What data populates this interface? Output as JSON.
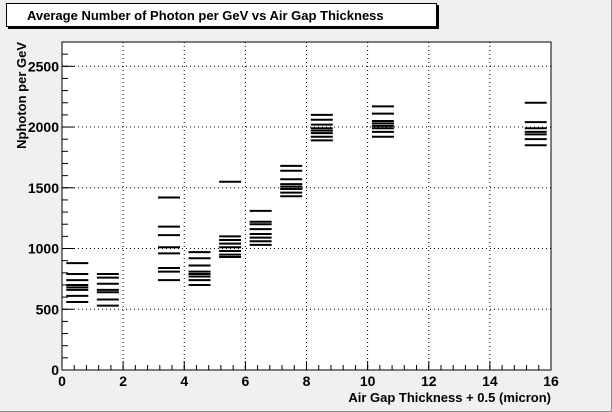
{
  "chart_data": {
    "type": "scatter",
    "marker": "horizontal-dash",
    "title": "Average Number of Photon per GeV vs Air Gap Thickness",
    "xlabel": "Air Gap Thickness + 0.5 (micron)",
    "ylabel": "Nphoton per GeV",
    "xlim": [
      0,
      16
    ],
    "ylim": [
      0,
      2700
    ],
    "x_ticks": [
      0,
      2,
      4,
      6,
      8,
      10,
      12,
      14,
      16
    ],
    "y_ticks": [
      0,
      500,
      1000,
      1500,
      2000,
      2500
    ],
    "grid": true,
    "legend": "none",
    "colors": {
      "frame": "#000000",
      "plot_bg": "#ffffff",
      "canvas_bg": "#f0f0f0"
    },
    "series": [
      {
        "points": [
          {
            "x": 0.5,
            "y": 880
          },
          {
            "x": 0.5,
            "y": 790
          },
          {
            "x": 0.5,
            "y": 740
          },
          {
            "x": 0.5,
            "y": 700
          },
          {
            "x": 0.5,
            "y": 680
          },
          {
            "x": 0.5,
            "y": 660
          },
          {
            "x": 0.5,
            "y": 610
          },
          {
            "x": 0.5,
            "y": 560
          },
          {
            "x": 1.5,
            "y": 790
          },
          {
            "x": 1.5,
            "y": 760
          },
          {
            "x": 1.5,
            "y": 710
          },
          {
            "x": 1.5,
            "y": 660
          },
          {
            "x": 1.5,
            "y": 640
          },
          {
            "x": 1.5,
            "y": 580
          },
          {
            "x": 1.5,
            "y": 530
          },
          {
            "x": 3.5,
            "y": 1420
          },
          {
            "x": 3.5,
            "y": 1180
          },
          {
            "x": 3.5,
            "y": 1110
          },
          {
            "x": 3.5,
            "y": 1010
          },
          {
            "x": 3.5,
            "y": 960
          },
          {
            "x": 3.5,
            "y": 840
          },
          {
            "x": 3.5,
            "y": 810
          },
          {
            "x": 3.5,
            "y": 740
          },
          {
            "x": 4.5,
            "y": 970
          },
          {
            "x": 4.5,
            "y": 920
          },
          {
            "x": 4.5,
            "y": 860
          },
          {
            "x": 4.5,
            "y": 810
          },
          {
            "x": 4.5,
            "y": 790
          },
          {
            "x": 4.5,
            "y": 770
          },
          {
            "x": 4.5,
            "y": 740
          },
          {
            "x": 4.5,
            "y": 700
          },
          {
            "x": 5.5,
            "y": 1550
          },
          {
            "x": 5.5,
            "y": 1100
          },
          {
            "x": 5.5,
            "y": 1070
          },
          {
            "x": 5.5,
            "y": 1040
          },
          {
            "x": 5.5,
            "y": 1010
          },
          {
            "x": 5.5,
            "y": 980
          },
          {
            "x": 5.5,
            "y": 950
          },
          {
            "x": 5.5,
            "y": 930
          },
          {
            "x": 6.5,
            "y": 1310
          },
          {
            "x": 6.5,
            "y": 1220
          },
          {
            "x": 6.5,
            "y": 1200
          },
          {
            "x": 6.5,
            "y": 1160
          },
          {
            "x": 6.5,
            "y": 1120
          },
          {
            "x": 6.5,
            "y": 1090
          },
          {
            "x": 6.5,
            "y": 1060
          },
          {
            "x": 6.5,
            "y": 1030
          },
          {
            "x": 7.5,
            "y": 1680
          },
          {
            "x": 7.5,
            "y": 1640
          },
          {
            "x": 7.5,
            "y": 1570
          },
          {
            "x": 7.5,
            "y": 1530
          },
          {
            "x": 7.5,
            "y": 1510
          },
          {
            "x": 7.5,
            "y": 1490
          },
          {
            "x": 7.5,
            "y": 1460
          },
          {
            "x": 7.5,
            "y": 1430
          },
          {
            "x": 8.5,
            "y": 2100
          },
          {
            "x": 8.5,
            "y": 2060
          },
          {
            "x": 8.5,
            "y": 2020
          },
          {
            "x": 8.5,
            "y": 1990
          },
          {
            "x": 8.5,
            "y": 1970
          },
          {
            "x": 8.5,
            "y": 1950
          },
          {
            "x": 8.5,
            "y": 1920
          },
          {
            "x": 8.5,
            "y": 1890
          },
          {
            "x": 10.5,
            "y": 2170
          },
          {
            "x": 10.5,
            "y": 2110
          },
          {
            "x": 10.5,
            "y": 2050
          },
          {
            "x": 10.5,
            "y": 2030
          },
          {
            "x": 10.5,
            "y": 2010
          },
          {
            "x": 10.5,
            "y": 1990
          },
          {
            "x": 10.5,
            "y": 1960
          },
          {
            "x": 10.5,
            "y": 1920
          },
          {
            "x": 15.5,
            "y": 2200
          },
          {
            "x": 15.5,
            "y": 2040
          },
          {
            "x": 15.5,
            "y": 1990
          },
          {
            "x": 15.5,
            "y": 1960
          },
          {
            "x": 15.5,
            "y": 1940
          },
          {
            "x": 15.5,
            "y": 1900
          },
          {
            "x": 15.5,
            "y": 1850
          }
        ]
      }
    ]
  }
}
